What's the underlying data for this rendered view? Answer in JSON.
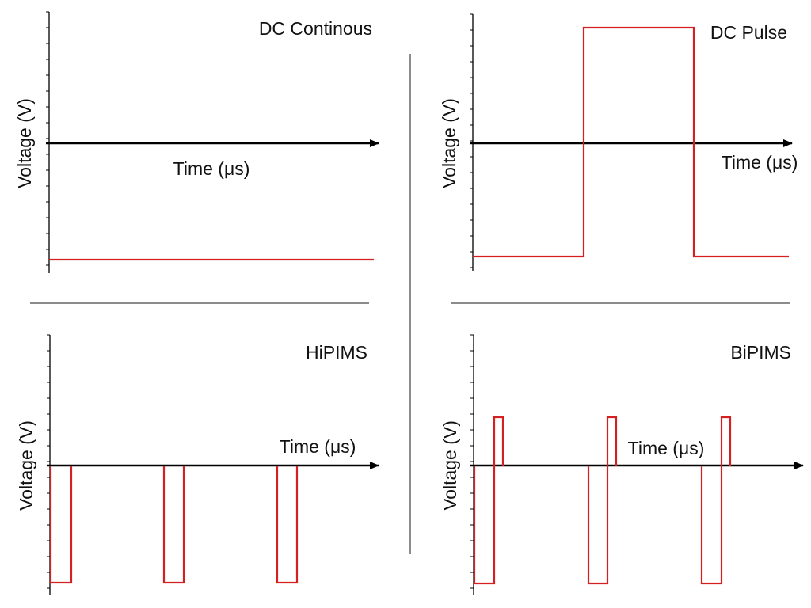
{
  "colors": {
    "waveform": "#d42020",
    "axis": "#000000",
    "divider": "#8c8c8c"
  },
  "panels": [
    {
      "title": "DC Continous",
      "ylabel": "Voltage (V)",
      "xlabel": "Time (μs)",
      "waveform": "constant negative voltage"
    },
    {
      "title": "DC Pulse",
      "ylabel": "Voltage (V)",
      "xlabel": "Time (μs)",
      "waveform": "negative baseline with one positive rectangular pulse"
    },
    {
      "title": "HiPIMS",
      "ylabel": "Voltage (V)",
      "xlabel": "Time (μs)",
      "waveform": "three short negative pulses from zero"
    },
    {
      "title": "BiPIMS",
      "ylabel": "Voltage (V)",
      "xlabel": "Time (μs)",
      "waveform": "three negative pulses each followed by a short positive pulse"
    }
  ]
}
